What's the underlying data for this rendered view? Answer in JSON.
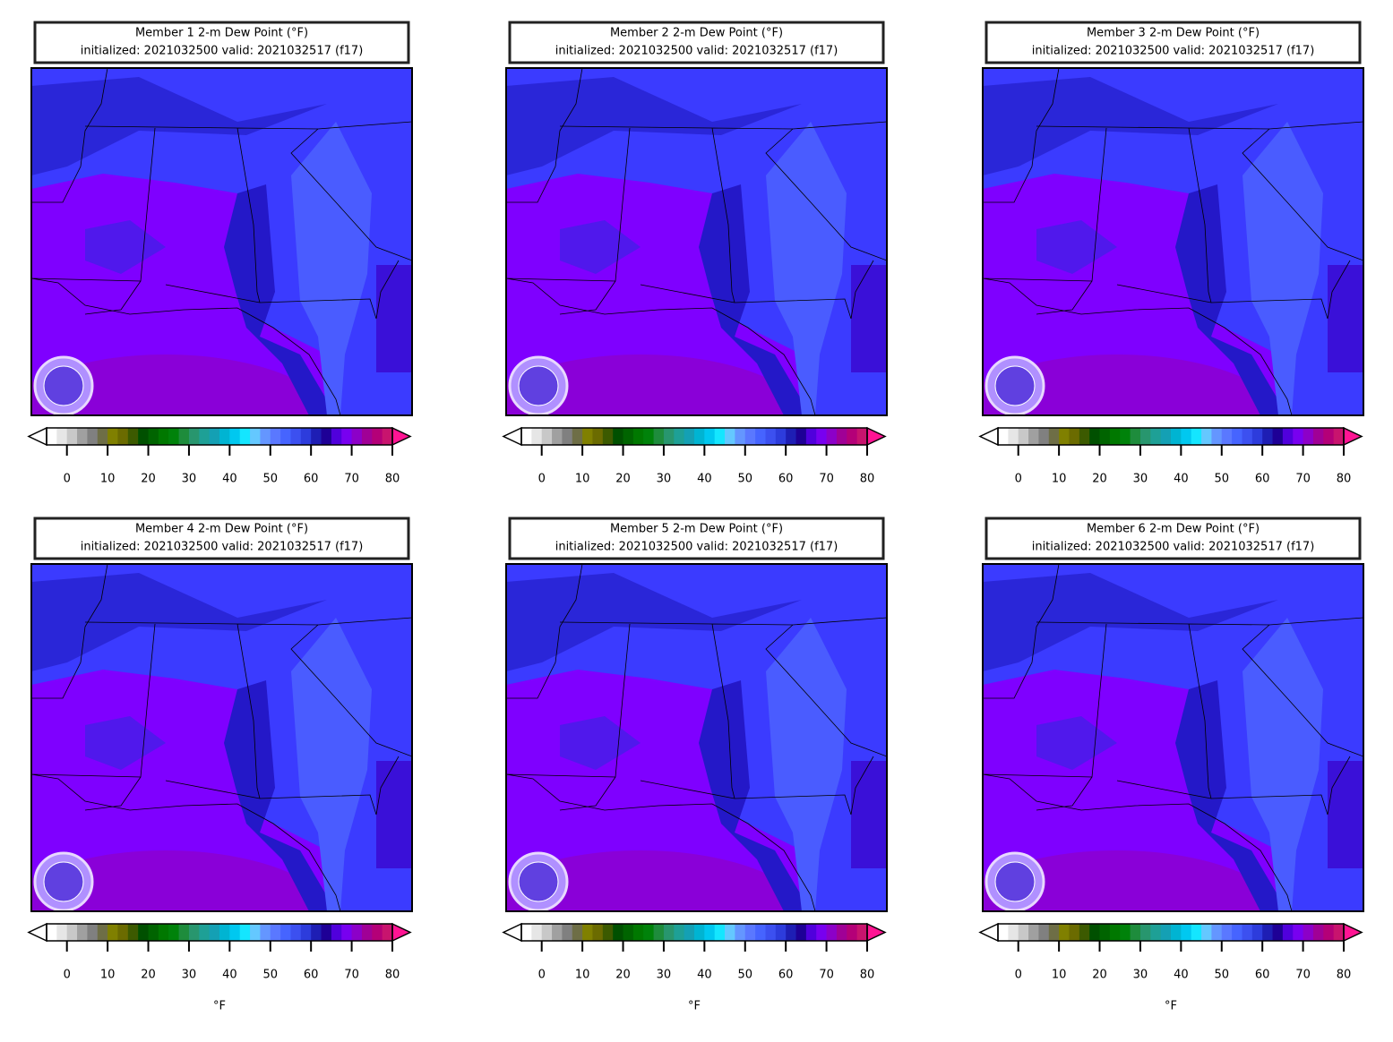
{
  "panels": [
    {
      "title": "Member 1 2-m Dew Point (°F)",
      "subtitle": "initialized: 2021032500 valid: 2021032517 (f17)"
    },
    {
      "title": "Member 2 2-m Dew Point (°F)",
      "subtitle": "initialized: 2021032500 valid: 2021032517 (f17)"
    },
    {
      "title": "Member 3 2-m Dew Point (°F)",
      "subtitle": "initialized: 2021032500 valid: 2021032517 (f17)"
    },
    {
      "title": "Member 4 2-m Dew Point (°F)",
      "subtitle": "initialized: 2021032500 valid: 2021032517 (f17)",
      "colorbar_label": "°F"
    },
    {
      "title": "Member 5 2-m Dew Point (°F)",
      "subtitle": "initialized: 2021032500 valid: 2021032517 (f17)",
      "colorbar_label": "°F"
    },
    {
      "title": "Member 6 2-m Dew Point (°F)",
      "subtitle": "initialized: 2021032500 valid: 2021032517 (f17)",
      "colorbar_label": "°F"
    }
  ],
  "colorbar": {
    "range": [
      -5,
      80
    ],
    "ticks": [
      0,
      10,
      20,
      30,
      40,
      50,
      60,
      70,
      80
    ],
    "colors": [
      "#ffffff",
      "#e6e6e6",
      "#c8c8c8",
      "#a0a0a0",
      "#808080",
      "#6e6e46",
      "#808000",
      "#6b6b00",
      "#3c5a00",
      "#005000",
      "#006400",
      "#007800",
      "#00820a",
      "#1e8c3c",
      "#28966e",
      "#1ea096",
      "#14a0b4",
      "#00b4d2",
      "#00c8f0",
      "#14e6ff",
      "#64c8ff",
      "#6496ff",
      "#5a78ff",
      "#4664ff",
      "#3c50f0",
      "#2d3cdc",
      "#1e1eb4",
      "#1e0096",
      "#5000dc",
      "#7800f0",
      "#8c00c8",
      "#a00096",
      "#b40078",
      "#c8146e"
    ],
    "under_color": "#ffffff",
    "over_color": "#ff1493"
  }
}
